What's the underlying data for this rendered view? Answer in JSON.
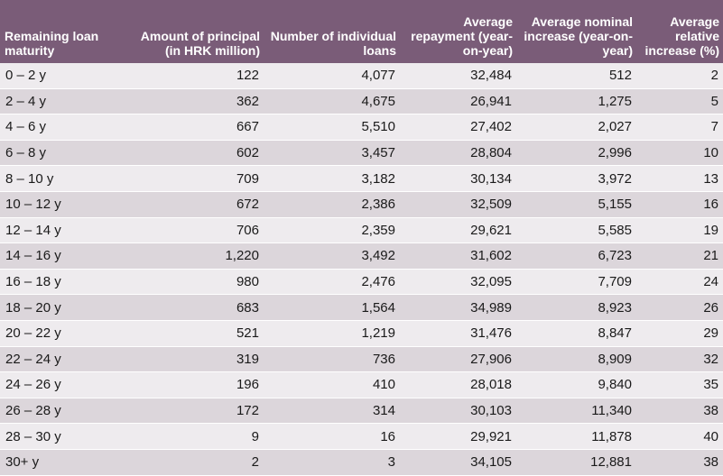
{
  "table": {
    "headers": [
      "Remaining loan maturity",
      "Amount of principal (in HRK million)",
      "Number of individual loans",
      "Average repayment (year-on-year)",
      "Average nominal increase (year-on-year)",
      "Average relative increase (%)"
    ],
    "rows": [
      [
        "0 – 2 y",
        "122",
        "4,077",
        "32,484",
        "512",
        "2"
      ],
      [
        "2 – 4 y",
        "362",
        "4,675",
        "26,941",
        "1,275",
        "5"
      ],
      [
        "4 – 6 y",
        "667",
        "5,510",
        "27,402",
        "2,027",
        "7"
      ],
      [
        "6 – 8 y",
        "602",
        "3,457",
        "28,804",
        "2,996",
        "10"
      ],
      [
        "8 – 10 y",
        "709",
        "3,182",
        "30,134",
        "3,972",
        "13"
      ],
      [
        "10 – 12 y",
        "672",
        "2,386",
        "32,509",
        "5,155",
        "16"
      ],
      [
        "12 – 14 y",
        "706",
        "2,359",
        "29,621",
        "5,585",
        "19"
      ],
      [
        "14 – 16 y",
        "1,220",
        "3,492",
        "31,602",
        "6,723",
        "21"
      ],
      [
        "16 – 18 y",
        "980",
        "2,476",
        "32,095",
        "7,709",
        "24"
      ],
      [
        "18 – 20 y",
        "683",
        "1,564",
        "34,989",
        "8,923",
        "26"
      ],
      [
        "20 – 22 y",
        "521",
        "1,219",
        "31,476",
        "8,847",
        "29"
      ],
      [
        "22 – 24 y",
        "319",
        "736",
        "27,906",
        "8,909",
        "32"
      ],
      [
        "24 – 26 y",
        "196",
        "410",
        "28,018",
        "9,840",
        "35"
      ],
      [
        "26 – 28 y",
        "172",
        "314",
        "30,103",
        "11,340",
        "38"
      ],
      [
        "28 – 30 y",
        "9",
        "16",
        "29,921",
        "11,878",
        "40"
      ],
      [
        "30+ y",
        "2",
        "3",
        "34,105",
        "12,881",
        "38"
      ]
    ]
  }
}
